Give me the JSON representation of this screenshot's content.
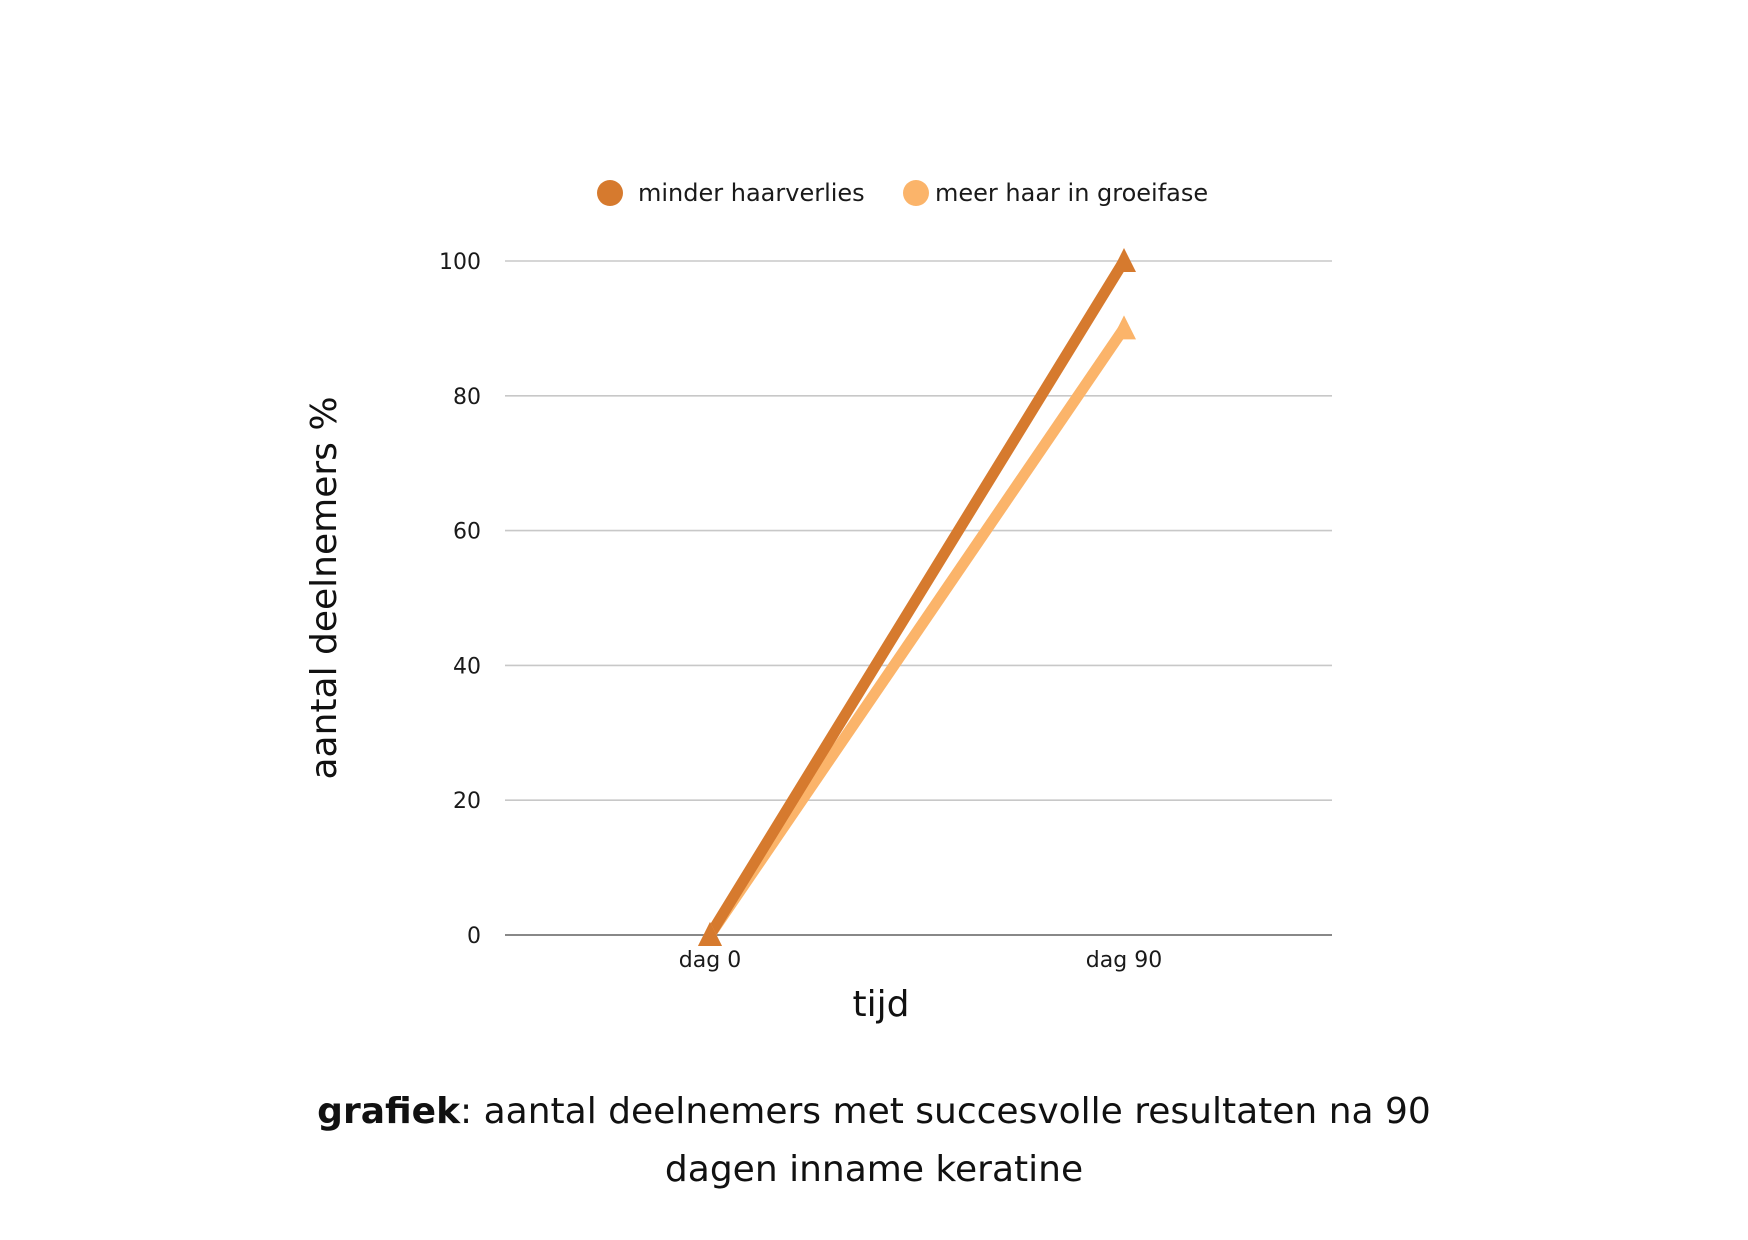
{
  "caption": {
    "bold": "grafiek",
    "rest": ": aantal deelnemers met succesvolle resultaten na 90 dagen inname keratine"
  },
  "chart_data": {
    "type": "line",
    "x": [
      "dag 0",
      "dag 90"
    ],
    "series": [
      {
        "name": "minder haarverlies",
        "values": [
          0,
          100
        ],
        "color": "#D67A2E",
        "marker": "triangle"
      },
      {
        "name": "meer haar in groeifase",
        "values": [
          0,
          90
        ],
        "color": "#FBB46A",
        "marker": "triangle"
      }
    ],
    "xlabel": "tijd",
    "ylabel": "aantal deelnemers  %",
    "ylim": [
      0,
      100
    ],
    "yticks": [
      0,
      20,
      40,
      60,
      80,
      100
    ],
    "ytick_labels": [
      "0",
      "20",
      "40",
      "60",
      "80",
      "100"
    ],
    "grid": true,
    "legend": "top-center",
    "colors": {
      "grid": "#C8C8C8",
      "baseline": "#888888"
    }
  }
}
